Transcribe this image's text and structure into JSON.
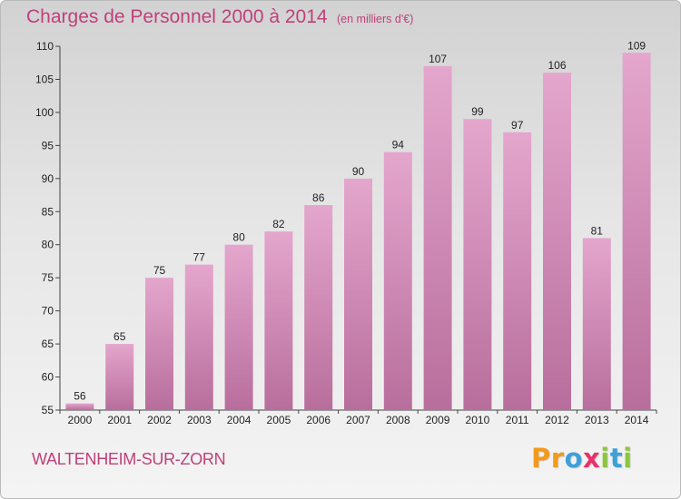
{
  "header": {
    "title": "Charges de Personnel 2000 à 2014",
    "subtitle": "(en milliers d'€)"
  },
  "footer": {
    "commune": "WALTENHEIM-SUR-ZORN",
    "logo": [
      "P",
      "r",
      "o",
      "x",
      "i",
      "t",
      "i"
    ]
  },
  "colors": {
    "title": "#c0407a",
    "bar_top": "#e4a6cd",
    "bar_bottom": "#b86e9c",
    "logo": [
      "#f29a1e",
      "#f29a1e",
      "#3ea0d8",
      "#e5336b",
      "#8cc63e",
      "#3ea0d8",
      "#8cc63e"
    ]
  },
  "chart_data": {
    "type": "bar",
    "categories": [
      "2000",
      "2001",
      "2002",
      "2003",
      "2004",
      "2005",
      "2006",
      "2007",
      "2008",
      "2009",
      "2010",
      "2011",
      "2012",
      "2013",
      "2014"
    ],
    "values": [
      56,
      65,
      75,
      77,
      80,
      82,
      86,
      90,
      94,
      107,
      99,
      97,
      106,
      81,
      109
    ],
    "title": "Charges de Personnel 2000 à 2014",
    "subtitle": "(en milliers d'€)",
    "xlabel": "",
    "ylabel": "",
    "ylim": [
      55,
      110
    ],
    "yticks": [
      55,
      60,
      65,
      70,
      75,
      80,
      85,
      90,
      95,
      100,
      105,
      110
    ],
    "grid": false
  }
}
